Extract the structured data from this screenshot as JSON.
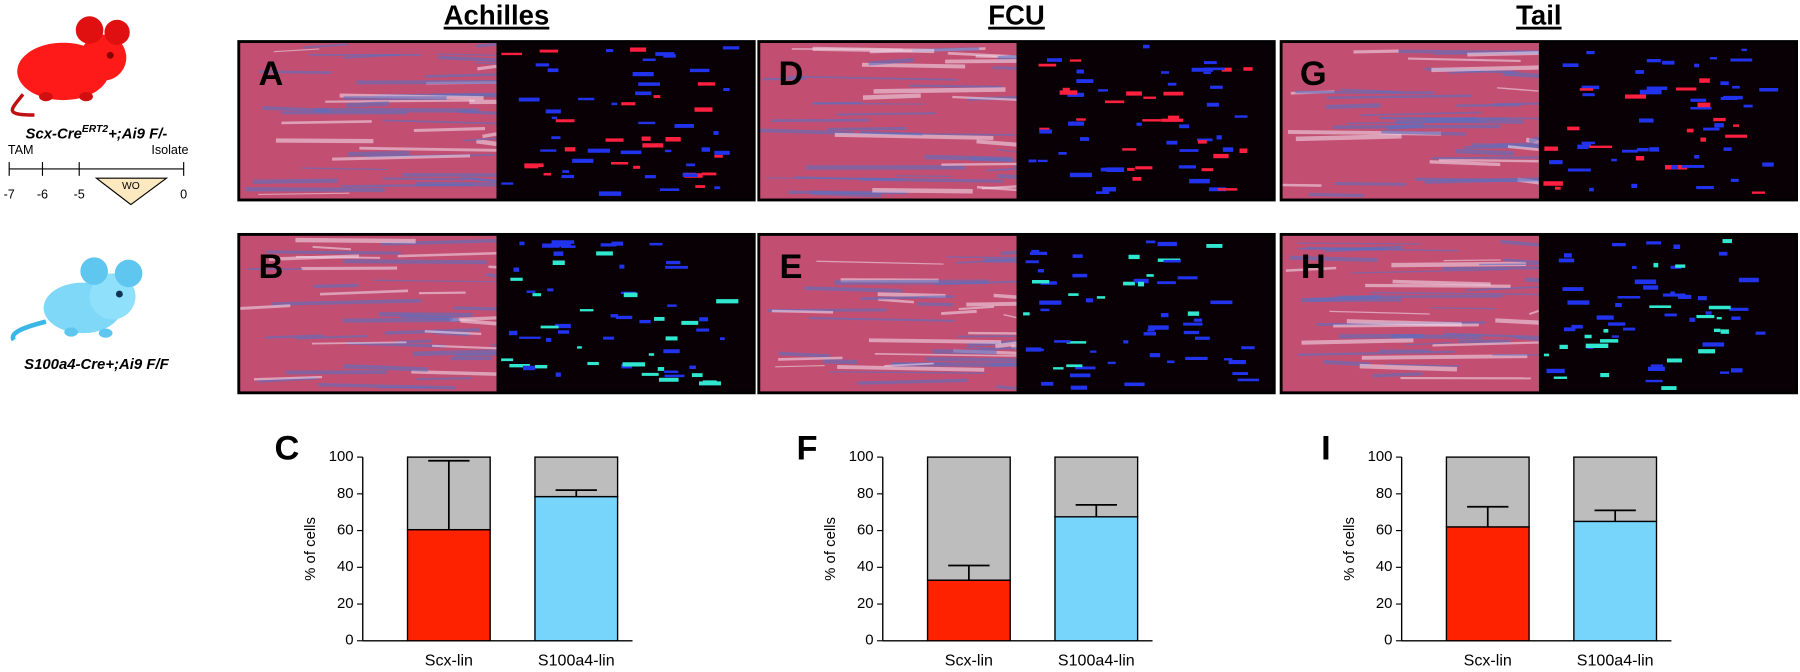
{
  "columns": [
    "Achilles",
    "FCU",
    "Tail"
  ],
  "panel_letters": [
    [
      "A",
      "B"
    ],
    [
      "D",
      "E"
    ],
    [
      "G",
      "H"
    ]
  ],
  "mice": [
    {
      "label_parts": [
        "Scx-Cre",
        "ERT2",
        "+;Ai9 F/-"
      ]
    },
    {
      "label": "S100a4-Cre+;Ai9 F/F"
    }
  ],
  "timeline": {
    "start_label": "TAM",
    "end_label": "Isolate",
    "ticks": [
      "-7",
      "-6",
      "-5",
      "0"
    ],
    "washout": "WO"
  },
  "chart_data": [
    {
      "type": "bar",
      "letter": "C",
      "ylabel": "% of cells",
      "categories": [
        "Scx-lin",
        "S100a4-lin"
      ],
      "series": [
        {
          "colors": [
            "#ff2200",
            "#77d5fb"
          ],
          "values": [
            60.5,
            78.5
          ],
          "errors": [
            37.5,
            3.5
          ]
        },
        {
          "color": "#bdbdbd",
          "values": [
            39.5,
            21.5
          ]
        }
      ],
      "ylim": [
        0,
        100
      ],
      "yticks": [
        0,
        20,
        40,
        60,
        80,
        100
      ]
    },
    {
      "type": "bar",
      "letter": "F",
      "ylabel": "% of cells",
      "categories": [
        "Scx-lin",
        "S100a4-lin"
      ],
      "series": [
        {
          "colors": [
            "#ff2200",
            "#77d5fb"
          ],
          "values": [
            33,
            67.5
          ],
          "errors": [
            8,
            6.5
          ]
        },
        {
          "color": "#bdbdbd",
          "values": [
            67,
            32.5
          ]
        }
      ],
      "ylim": [
        0,
        100
      ],
      "yticks": [
        0,
        20,
        40,
        60,
        80,
        100
      ]
    },
    {
      "type": "bar",
      "letter": "I",
      "ylabel": "% of cells",
      "categories": [
        "Scx-lin",
        "S100a4-lin"
      ],
      "series": [
        {
          "colors": [
            "#ff2200",
            "#77d5fb"
          ],
          "values": [
            62,
            65
          ],
          "errors": [
            11,
            6
          ]
        },
        {
          "color": "#bdbdbd",
          "values": [
            38,
            35
          ]
        }
      ],
      "ylim": [
        0,
        100
      ],
      "yticks": [
        0,
        20,
        40,
        60,
        80,
        100
      ]
    }
  ]
}
